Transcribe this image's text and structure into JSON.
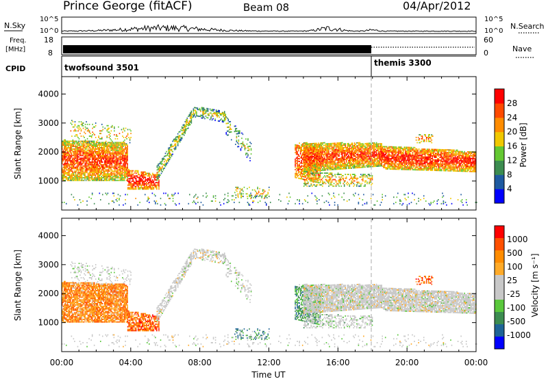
{
  "header": {
    "title": "Prince George (fitACF)",
    "beam": "Beam 08",
    "date": "04/Apr/2012"
  },
  "colors": {
    "power_scale": [
      "#0000ff",
      "#1e5aa0",
      "#3c8c50",
      "#64c832",
      "#f0c800",
      "#ff8c00",
      "#ff4a00",
      "#ff0000"
    ],
    "velocity_scale": [
      "#ff0000",
      "#ff5000",
      "#ff8c00",
      "#ffaa28",
      "#c8c8c8",
      "#c8c8c8",
      "#5ac83c",
      "#3c8c50",
      "#1e6496",
      "#0000ff"
    ],
    "ground_scatter": "#b4b4b4"
  },
  "chart_data": [
    {
      "type": "line",
      "name": "noise",
      "ylabel": "N.Sky",
      "yticks": [
        "10^5",
        "10^0"
      ],
      "right_label": "N.Search",
      "right_yticks": [
        "10^5",
        "10^0"
      ]
    },
    {
      "type": "line",
      "name": "freq",
      "ylabel_line1": "Freq.",
      "ylabel_line2": "[MHz]",
      "yticks": [
        "18",
        "8"
      ],
      "right_label": "Nave",
      "right_yticks": [
        "60",
        "0"
      ],
      "cpid_label": "CPID",
      "cpid_segments": [
        {
          "label": "twofsound 3501",
          "start_hour": 0,
          "end_hour": 18
        },
        {
          "label": "themis 3300",
          "start_hour": 18,
          "end_hour": 24
        }
      ]
    },
    {
      "type": "heatmap",
      "name": "power",
      "ylabel": "Slant Range [km]",
      "yticks": [
        "1000",
        "2000",
        "3000",
        "4000"
      ],
      "ylim": [
        0,
        4600
      ],
      "colorbar_label": "Power [dB]",
      "colorbar_ticks": [
        "4",
        "8",
        "12",
        "16",
        "20",
        "24",
        "28"
      ]
    },
    {
      "type": "heatmap",
      "name": "velocity",
      "ylabel": "Slant Range [km]",
      "yticks": [
        "1000",
        "2000",
        "3000",
        "4000"
      ],
      "ylim": [
        0,
        4600
      ],
      "colorbar_label": "Velocity [m s⁻¹]",
      "colorbar_ticks": [
        "1000",
        "500",
        "100",
        "25",
        "-25",
        "-100",
        "-500",
        "-1000"
      ]
    }
  ],
  "xaxis": {
    "ticks": [
      "00:00",
      "04:00",
      "08:00",
      "12:00",
      "16:00",
      "20:00",
      "00:00"
    ],
    "label": "Time UT",
    "xlim_hours": [
      0,
      24
    ]
  }
}
